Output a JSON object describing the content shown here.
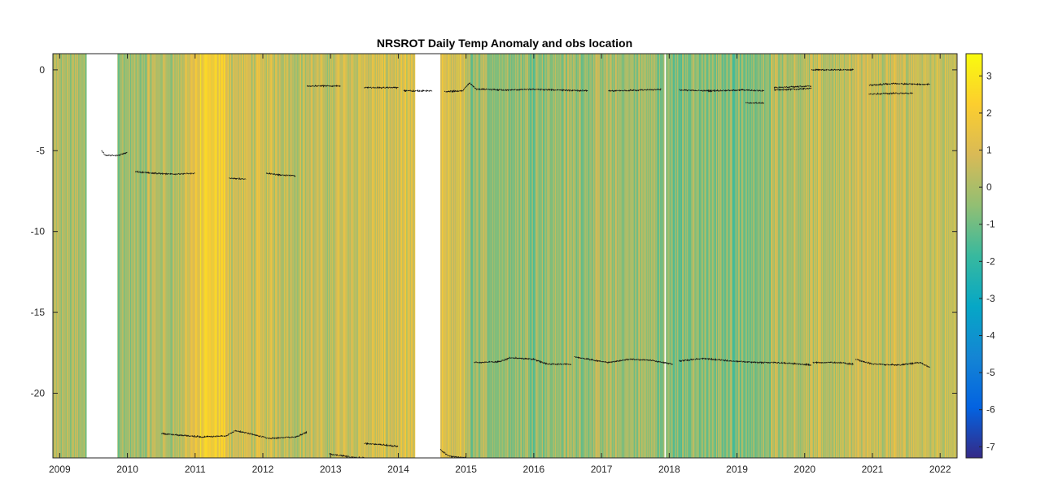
{
  "chart_data": {
    "type": "heatmap",
    "title": "NRSROT Daily Temp Anomaly and obs location",
    "xlabel": "",
    "ylabel": "",
    "xlim": [
      2008.9,
      2022.25
    ],
    "ylim": [
      -24,
      1
    ],
    "x_ticks": [
      {
        "value": 2009,
        "label": "2009"
      },
      {
        "value": 2010,
        "label": "2010"
      },
      {
        "value": 2011,
        "label": "2011"
      },
      {
        "value": 2012,
        "label": "2012"
      },
      {
        "value": 2013,
        "label": "2013"
      },
      {
        "value": 2014,
        "label": "2014"
      },
      {
        "value": 2015,
        "label": "2015"
      },
      {
        "value": 2016,
        "label": "2016"
      },
      {
        "value": 2017,
        "label": "2017"
      },
      {
        "value": 2018,
        "label": "2018"
      },
      {
        "value": 2019,
        "label": "2019"
      },
      {
        "value": 2020,
        "label": "2020"
      },
      {
        "value": 2021,
        "label": "2021"
      },
      {
        "value": 2022,
        "label": "2022"
      }
    ],
    "y_ticks": [
      {
        "value": 0,
        "label": "0"
      },
      {
        "value": -5,
        "label": "-5"
      },
      {
        "value": -10,
        "label": "-10"
      },
      {
        "value": -15,
        "label": "-15"
      },
      {
        "value": -20,
        "label": "-20"
      }
    ],
    "colorbar": {
      "colormap": "parula",
      "clim": [
        -7.3,
        3.6
      ],
      "ticks": [
        {
          "value": 3,
          "label": "3"
        },
        {
          "value": 2,
          "label": "2"
        },
        {
          "value": 1,
          "label": "1"
        },
        {
          "value": 0,
          "label": "0"
        },
        {
          "value": -1,
          "label": "-1"
        },
        {
          "value": -2,
          "label": "-2"
        },
        {
          "value": -3,
          "label": "-3"
        },
        {
          "value": -4,
          "label": "-4"
        },
        {
          "value": -5,
          "label": "-5"
        },
        {
          "value": -6,
          "label": "-6"
        },
        {
          "value": -7,
          "label": "-7"
        }
      ],
      "stops": [
        "#352a87",
        "#0363e1",
        "#1485d4",
        "#06a7c6",
        "#38b99e",
        "#92bf73",
        "#d9ba56",
        "#fcce2e",
        "#f9fb0e"
      ]
    },
    "anomaly_by_period": [
      {
        "start": 2008.9,
        "end": 2009.4,
        "anomaly": 0.0
      },
      {
        "start": 2009.85,
        "end": 2010.3,
        "anomaly": -0.3
      },
      {
        "start": 2010.3,
        "end": 2010.85,
        "anomaly": 0.2
      },
      {
        "start": 2010.85,
        "end": 2011.05,
        "anomaly": 1.2
      },
      {
        "start": 2011.05,
        "end": 2011.5,
        "anomaly": 1.8
      },
      {
        "start": 2011.5,
        "end": 2012.4,
        "anomaly": 0.7
      },
      {
        "start": 2012.4,
        "end": 2013.1,
        "anomaly": 0.4
      },
      {
        "start": 2013.1,
        "end": 2014.25,
        "anomaly": 0.8
      },
      {
        "start": 2014.6,
        "end": 2015.0,
        "anomaly": 0.9
      },
      {
        "start": 2015.0,
        "end": 2016.5,
        "anomaly": -0.3
      },
      {
        "start": 2016.5,
        "end": 2017.8,
        "anomaly": -0.2
      },
      {
        "start": 2017.8,
        "end": 2019.5,
        "anomaly": -0.6
      },
      {
        "start": 2019.5,
        "end": 2020.5,
        "anomaly": 0.3
      },
      {
        "start": 2020.5,
        "end": 2021.5,
        "anomaly": 0.5
      },
      {
        "start": 2021.5,
        "end": 2022.25,
        "anomaly": 0.7
      }
    ],
    "data_gaps": [
      [
        2009.4,
        2009.85
      ],
      [
        2014.25,
        2014.62
      ],
      [
        2017.93,
        2017.95
      ]
    ],
    "obs_location_series": [
      {
        "points": [
          [
            2009.62,
            -5.0
          ],
          [
            2009.68,
            -5.3
          ],
          [
            2009.85,
            -5.3
          ],
          [
            2010.0,
            -5.1
          ]
        ]
      },
      {
        "points": [
          [
            2010.12,
            -6.3
          ],
          [
            2010.4,
            -6.4
          ],
          [
            2010.7,
            -6.45
          ],
          [
            2011.0,
            -6.4
          ]
        ]
      },
      {
        "points": [
          [
            2011.5,
            -6.7
          ],
          [
            2011.75,
            -6.75
          ]
        ]
      },
      {
        "points": [
          [
            2012.05,
            -6.4
          ],
          [
            2012.25,
            -6.5
          ],
          [
            2012.48,
            -6.55
          ]
        ]
      },
      {
        "points": [
          [
            2012.65,
            -1.0
          ],
          [
            2013.15,
            -1.0
          ]
        ]
      },
      {
        "points": [
          [
            2013.5,
            -1.1
          ],
          [
            2014.0,
            -1.1
          ]
        ]
      },
      {
        "points": [
          [
            2014.08,
            -1.3
          ],
          [
            2014.5,
            -1.3
          ]
        ]
      },
      {
        "points": [
          [
            2014.68,
            -1.35
          ],
          [
            2014.95,
            -1.3
          ],
          [
            2015.05,
            -0.8
          ],
          [
            2015.15,
            -1.2
          ],
          [
            2015.6,
            -1.25
          ],
          [
            2016.0,
            -1.2
          ],
          [
            2016.8,
            -1.3
          ]
        ]
      },
      {
        "points": [
          [
            2017.1,
            -1.3
          ],
          [
            2017.6,
            -1.25
          ],
          [
            2017.88,
            -1.2
          ]
        ]
      },
      {
        "points": [
          [
            2018.15,
            -1.25
          ],
          [
            2018.6,
            -1.3
          ],
          [
            2019.1,
            -1.25
          ],
          [
            2019.4,
            -1.3
          ]
        ]
      },
      {
        "points": [
          [
            2019.13,
            -2.05
          ],
          [
            2019.4,
            -2.05
          ]
        ]
      },
      {
        "points": [
          [
            2019.55,
            -1.1
          ],
          [
            2020.1,
            -1.0
          ]
        ]
      },
      {
        "points": [
          [
            2019.55,
            -1.25
          ],
          [
            2020.1,
            -1.15
          ]
        ]
      },
      {
        "points": [
          [
            2020.1,
            0.0
          ],
          [
            2020.72,
            0.0
          ]
        ]
      },
      {
        "points": [
          [
            2020.95,
            -0.95
          ],
          [
            2021.3,
            -0.85
          ],
          [
            2021.85,
            -0.9
          ]
        ]
      },
      {
        "points": [
          [
            2020.95,
            -1.5
          ],
          [
            2021.3,
            -1.45
          ],
          [
            2021.6,
            -1.45
          ]
        ]
      },
      {
        "points": [
          [
            2015.12,
            -18.1
          ],
          [
            2015.5,
            -18.05
          ],
          [
            2015.65,
            -17.8
          ],
          [
            2016.0,
            -17.9
          ],
          [
            2016.2,
            -18.2
          ],
          [
            2016.55,
            -18.2
          ]
        ]
      },
      {
        "points": [
          [
            2016.6,
            -17.75
          ],
          [
            2016.8,
            -17.9
          ],
          [
            2017.1,
            -18.1
          ],
          [
            2017.4,
            -17.9
          ],
          [
            2017.7,
            -17.95
          ],
          [
            2018.05,
            -18.2
          ]
        ]
      },
      {
        "points": [
          [
            2018.15,
            -18.0
          ],
          [
            2018.5,
            -17.85
          ],
          [
            2018.9,
            -18.0
          ],
          [
            2019.3,
            -18.1
          ],
          [
            2019.6,
            -18.1
          ],
          [
            2020.1,
            -18.25
          ]
        ]
      },
      {
        "points": [
          [
            2020.12,
            -18.1
          ],
          [
            2020.5,
            -18.1
          ],
          [
            2020.72,
            -18.2
          ]
        ]
      },
      {
        "points": [
          [
            2020.75,
            -17.9
          ],
          [
            2021.0,
            -18.2
          ],
          [
            2021.4,
            -18.25
          ],
          [
            2021.7,
            -18.1
          ],
          [
            2021.85,
            -18.4
          ]
        ]
      },
      {
        "points": [
          [
            2010.5,
            -22.5
          ],
          [
            2010.8,
            -22.6
          ],
          [
            2011.1,
            -22.7
          ],
          [
            2011.45,
            -22.65
          ],
          [
            2011.6,
            -22.3
          ],
          [
            2011.9,
            -22.6
          ],
          [
            2012.1,
            -22.8
          ],
          [
            2012.5,
            -22.7
          ],
          [
            2012.65,
            -22.4
          ]
        ]
      },
      {
        "points": [
          [
            2012.98,
            -23.75
          ],
          [
            2013.3,
            -23.95
          ],
          [
            2013.5,
            -24.0
          ]
        ]
      },
      {
        "points": [
          [
            2013.5,
            -23.1
          ],
          [
            2013.8,
            -23.2
          ],
          [
            2014.0,
            -23.3
          ]
        ]
      },
      {
        "points": [
          [
            2014.62,
            -23.5
          ],
          [
            2014.75,
            -23.9
          ],
          [
            2015.0,
            -24.0
          ]
        ]
      }
    ]
  }
}
